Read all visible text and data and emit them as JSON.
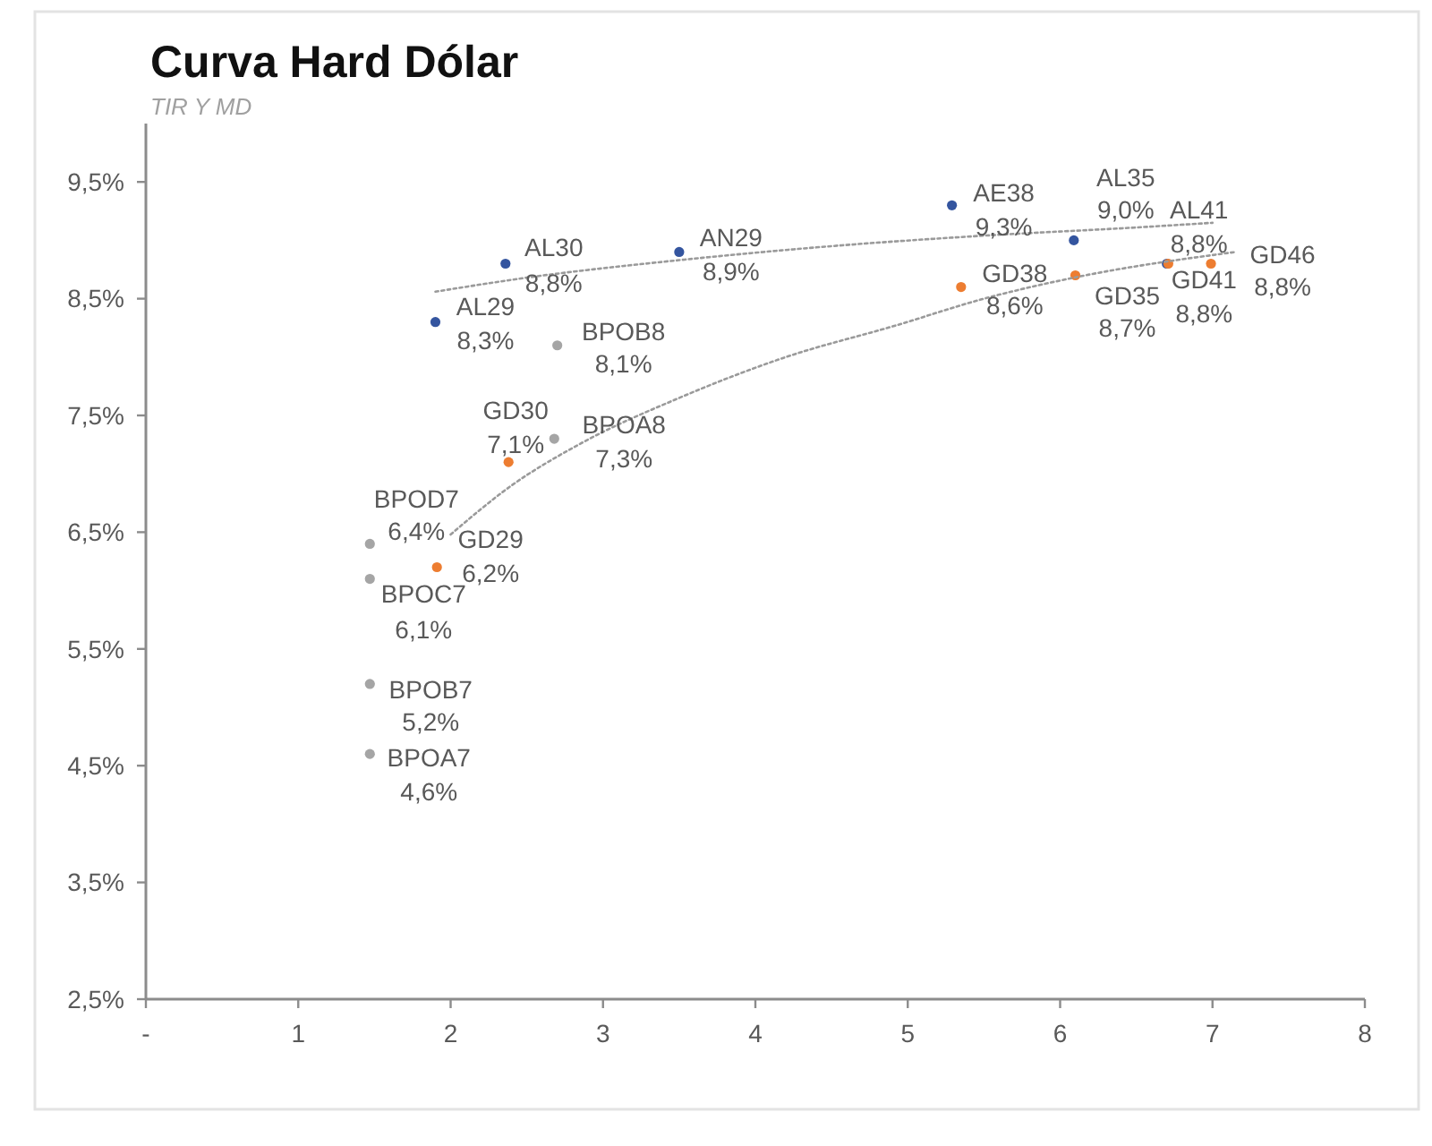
{
  "chart_data": {
    "type": "scatter",
    "title": "Curva Hard Dólar",
    "subtitle": "TIR Y MD",
    "xlim": [
      0,
      8
    ],
    "xticks": [
      {
        "value": 0,
        "label": "-"
      },
      1,
      2,
      3,
      4,
      5,
      6,
      7,
      8
    ],
    "ylim": [
      2.5,
      10
    ],
    "yticks": [
      {
        "value": 2.5,
        "label": "2,5%"
      },
      {
        "value": 3.5,
        "label": "3,5%"
      },
      {
        "value": 4.5,
        "label": "4,5%"
      },
      {
        "value": 5.5,
        "label": "5,5%"
      },
      {
        "value": 6.5,
        "label": "6,5%"
      },
      {
        "value": 7.5,
        "label": "7,5%"
      },
      {
        "value": 8.5,
        "label": "8,5%"
      },
      {
        "value": 9.5,
        "label": "9,5%"
      }
    ],
    "marker": "circle",
    "series": [
      {
        "color": "#34559f",
        "x": [
          1.9,
          2.36,
          3.5,
          5.29,
          6.09,
          6.7
        ],
        "values": [
          8.3,
          8.8,
          8.9,
          9.3,
          9.0,
          8.8
        ],
        "value_labels": [
          "8,3%",
          "8,8%",
          "8,9%",
          "9,3%",
          "9,0%",
          "8,8%"
        ]
      },
      {
        "color": "#ed7d31",
        "x": [
          1.91,
          2.38,
          5.35,
          6.1,
          6.71,
          6.99
        ],
        "values": [
          6.2,
          7.1,
          8.6,
          8.7,
          8.8,
          8.8
        ],
        "value_labels": [
          "6,2%",
          "7,1%",
          "8,6%",
          "8,7%",
          "8,8%",
          "8,8%"
        ]
      },
      {
        "color": "#a5a5a5",
        "x": [
          1.47,
          1.47,
          1.47,
          1.47,
          2.68,
          2.7
        ],
        "values": [
          4.6,
          5.2,
          6.1,
          6.4,
          7.3,
          8.1
        ],
        "value_labels": [
          "4,6%",
          "5,2%",
          "6,1%",
          "6,4%",
          "7,3%",
          "8,1%"
        ]
      },
      {
        "type": "line",
        "color": "#9a9a9a",
        "line_style": "dotted",
        "marker": "none",
        "x": [
          1.9,
          2.5,
          3.5,
          4.5,
          5.5,
          6.5,
          7.0
        ],
        "values": [
          8.56,
          8.68,
          8.83,
          8.95,
          9.04,
          9.11,
          9.15
        ]
      },
      {
        "type": "line",
        "color": "#9a9a9a",
        "line_style": "dotted",
        "marker": "none",
        "x": [
          2.0,
          2.4,
          2.84,
          3.5,
          4.2,
          4.92,
          5.5,
          6.09,
          7.15
        ],
        "values": [
          6.48,
          6.9,
          7.25,
          7.65,
          8.0,
          8.27,
          8.5,
          8.68,
          8.9
        ]
      }
    ],
    "annotations": [
      {
        "text": "AL29",
        "x": 1.9,
        "y": 8.3
      },
      {
        "text": "AL30",
        "x": 2.36,
        "y": 8.8
      },
      {
        "text": "AN29",
        "x": 3.5,
        "y": 8.9
      },
      {
        "text": "AE38",
        "x": 5.29,
        "y": 9.3
      },
      {
        "text": "AL35",
        "x": 6.09,
        "y": 9.0
      },
      {
        "text": "AL41",
        "x": 6.7,
        "y": 8.8
      },
      {
        "text": "GD29",
        "x": 1.91,
        "y": 6.2
      },
      {
        "text": "GD30",
        "x": 2.38,
        "y": 7.1
      },
      {
        "text": "GD38",
        "x": 5.35,
        "y": 8.6
      },
      {
        "text": "GD35",
        "x": 6.1,
        "y": 8.7
      },
      {
        "text": "GD41",
        "x": 6.71,
        "y": 8.8
      },
      {
        "text": "GD46",
        "x": 6.99,
        "y": 8.8
      },
      {
        "text": "BPOA7",
        "x": 1.47,
        "y": 4.6
      },
      {
        "text": "BPOB7",
        "x": 1.47,
        "y": 5.2
      },
      {
        "text": "BPOC7",
        "x": 1.47,
        "y": 6.1
      },
      {
        "text": "BPOD7",
        "x": 1.47,
        "y": 6.4
      },
      {
        "text": "BPOA8",
        "x": 2.68,
        "y": 7.3
      },
      {
        "text": "BPOB8",
        "x": 2.7,
        "y": 8.1
      }
    ]
  }
}
